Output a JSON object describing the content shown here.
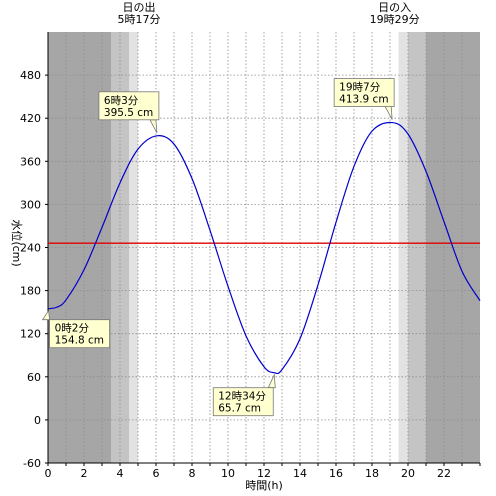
{
  "chart_data": {
    "type": "line",
    "xlabel": "時間(h)",
    "ylabel": "水位(cm)",
    "xlim": [
      0,
      24
    ],
    "ylim": [
      -60,
      540
    ],
    "x_ticks": [
      0,
      2,
      4,
      6,
      8,
      10,
      12,
      14,
      16,
      18,
      20,
      22
    ],
    "y_ticks": [
      -60,
      0,
      60,
      120,
      180,
      240,
      300,
      360,
      420,
      480
    ],
    "grid": true,
    "reference_line": {
      "value": 246,
      "color": "#e00000"
    },
    "series": [
      {
        "color": "#0000cc",
        "points": [
          {
            "x": 0.033,
            "y": 154.8
          },
          {
            "x": 0.5,
            "y": 157
          },
          {
            "x": 1.0,
            "y": 167
          },
          {
            "x": 2.0,
            "y": 209
          },
          {
            "x": 3.0,
            "y": 268
          },
          {
            "x": 4.0,
            "y": 330
          },
          {
            "x": 5.0,
            "y": 377
          },
          {
            "x": 6.05,
            "y": 395.5
          },
          {
            "x": 7.0,
            "y": 384
          },
          {
            "x": 8.0,
            "y": 336
          },
          {
            "x": 9.0,
            "y": 264
          },
          {
            "x": 10.0,
            "y": 186
          },
          {
            "x": 11.0,
            "y": 117
          },
          {
            "x": 12.0,
            "y": 74
          },
          {
            "x": 12.57,
            "y": 65.7
          },
          {
            "x": 13.0,
            "y": 70
          },
          {
            "x": 14.0,
            "y": 113
          },
          {
            "x": 15.0,
            "y": 188
          },
          {
            "x": 16.0,
            "y": 275
          },
          {
            "x": 17.0,
            "y": 353
          },
          {
            "x": 18.0,
            "y": 402
          },
          {
            "x": 19.12,
            "y": 413.9
          },
          {
            "x": 20.0,
            "y": 398
          },
          {
            "x": 21.0,
            "y": 346
          },
          {
            "x": 22.0,
            "y": 276
          },
          {
            "x": 23.0,
            "y": 207
          },
          {
            "x": 24.0,
            "y": 166
          }
        ]
      }
    ],
    "shading": [
      {
        "from": 0,
        "to": 3.5,
        "level": "night",
        "color": "#a6a6a6"
      },
      {
        "from": 3.5,
        "to": 4.5,
        "level": "twilight",
        "color": "#c4c4c4"
      },
      {
        "from": 4.5,
        "to": 5.0,
        "level": "dawn",
        "color": "#e2e2e2"
      },
      {
        "from": 5.0,
        "to": 19.48,
        "level": "day",
        "color": "#ffffff"
      },
      {
        "from": 19.48,
        "to": 20.0,
        "level": "dusk",
        "color": "#e2e2e2"
      },
      {
        "from": 20.0,
        "to": 21.0,
        "level": "twilight",
        "color": "#c4c4c4"
      },
      {
        "from": 21.0,
        "to": 24,
        "level": "night",
        "color": "#a6a6a6"
      }
    ],
    "sun_events": [
      {
        "label": "日の出",
        "time": "5時17分",
        "x": 5.28
      },
      {
        "label": "日の入",
        "time": "19時29分",
        "x": 19.48
      }
    ],
    "annotations": [
      {
        "time": "0時2分",
        "level": "154.8 cm",
        "x": 0.033,
        "y": 154.8,
        "placement": "below-right"
      },
      {
        "time": "6時3分",
        "level": "395.5 cm",
        "x": 6.05,
        "y": 395.5,
        "placement": "above-left"
      },
      {
        "time": "12時34分",
        "level": "65.7 cm",
        "x": 12.57,
        "y": 65.7,
        "placement": "below-left"
      },
      {
        "time": "19時7分",
        "level": "413.9 cm",
        "x": 19.12,
        "y": 413.9,
        "placement": "above-left"
      }
    ]
  }
}
